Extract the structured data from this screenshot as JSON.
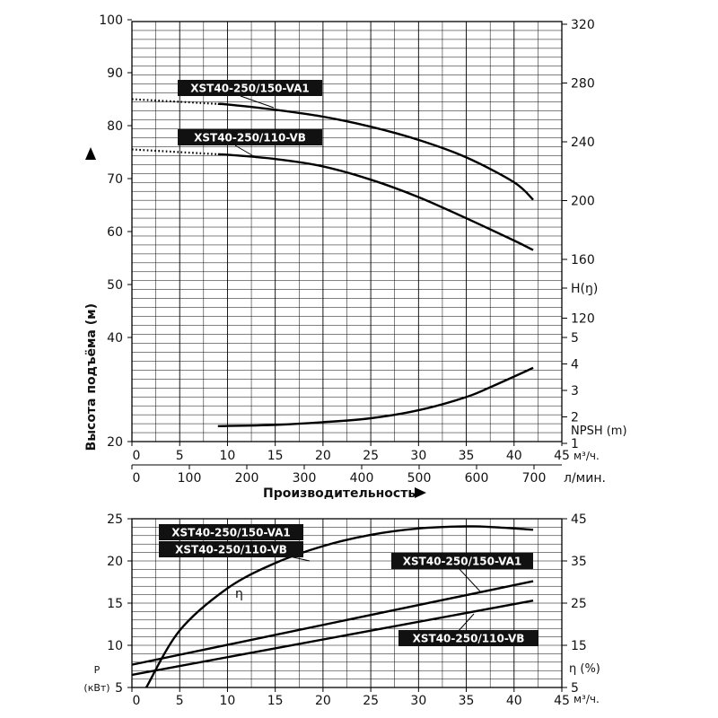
{
  "chart_data": [
    {
      "type": "line",
      "title": "",
      "xlabel": "Производительность",
      "ylabel": "Высота подъёма (м)",
      "x_unit_primary": "м³/ч.",
      "x_unit_secondary": "л/мин.",
      "xlim": [
        0,
        45
      ],
      "ylim_left": [
        20,
        100
      ],
      "y_ticks_left": [
        20,
        40,
        50,
        60,
        70,
        80,
        90,
        100
      ],
      "x_ticks_primary": [
        0,
        5,
        10,
        15,
        20,
        25,
        30,
        35,
        40,
        45
      ],
      "x_ticks_secondary": [
        0,
        100,
        200,
        300,
        400,
        500,
        600,
        700
      ],
      "right_axis_head": {
        "label": "H(ŋ)",
        "ticks": [
          120,
          160,
          200,
          240,
          280,
          320
        ]
      },
      "right_axis_npsh": {
        "label": "NPSH (m)",
        "ticks": [
          1,
          2,
          3,
          4,
          5
        ]
      },
      "grid": true,
      "series": [
        {
          "name": "XST40-250/150-VA1",
          "axis": "head",
          "x": [
            0,
            5,
            10,
            15,
            20,
            25,
            30,
            35,
            40,
            42
          ],
          "y": [
            85.0,
            84.5,
            84.0,
            83.0,
            81.7,
            79.8,
            77.3,
            74.0,
            69.3,
            66.0
          ],
          "dotted_until": 9
        },
        {
          "name": "XST40-250/110-VB",
          "axis": "head",
          "x": [
            0,
            5,
            10,
            15,
            20,
            25,
            30,
            35,
            40,
            42
          ],
          "y": [
            75.5,
            75.0,
            74.5,
            73.7,
            72.3,
            69.8,
            66.5,
            62.5,
            58.3,
            56.5
          ],
          "dotted_until": 9
        },
        {
          "name": "NPSH",
          "axis": "npsh",
          "x": [
            9,
            15,
            20,
            25,
            30,
            35,
            38,
            42
          ],
          "y": [
            1.65,
            1.7,
            1.8,
            1.95,
            2.25,
            2.75,
            3.2,
            3.85
          ]
        }
      ]
    },
    {
      "type": "line",
      "title": "",
      "xlabel": "",
      "ylabel": "P (кВт)",
      "ylabel_line1": "P",
      "ylabel_line2": "(кВт)",
      "x_unit": "м³/ч.",
      "xlim": [
        0,
        45
      ],
      "ylim_left": [
        5,
        25
      ],
      "ylim_right": [
        5,
        45
      ],
      "y_ticks_left": [
        5,
        10,
        15,
        20,
        25
      ],
      "y_ticks_right": [
        5,
        15,
        25,
        35,
        45
      ],
      "x_ticks": [
        0,
        5,
        10,
        15,
        20,
        25,
        30,
        35,
        40,
        45
      ],
      "right_label": "η (%)",
      "eta_label": "η",
      "combined_label_1": "XST40-250/150-VA1",
      "combined_label_2": "XST40-250/110-VB",
      "grid": true,
      "series": [
        {
          "name": "η",
          "axis": "eta",
          "x": [
            1.5,
            5,
            10,
            15,
            20,
            25,
            30,
            35,
            38,
            42
          ],
          "y": [
            5.0,
            18.5,
            28.5,
            34.5,
            38.5,
            41.2,
            42.7,
            43.2,
            43.0,
            42.4
          ]
        },
        {
          "name": "XST40-250/150-VA1",
          "axis": "power",
          "x": [
            0,
            42
          ],
          "y": [
            7.7,
            17.6
          ]
        },
        {
          "name": "XST40-250/110-VB",
          "axis": "power",
          "x": [
            0,
            42
          ],
          "y": [
            6.5,
            15.3
          ]
        }
      ]
    }
  ]
}
